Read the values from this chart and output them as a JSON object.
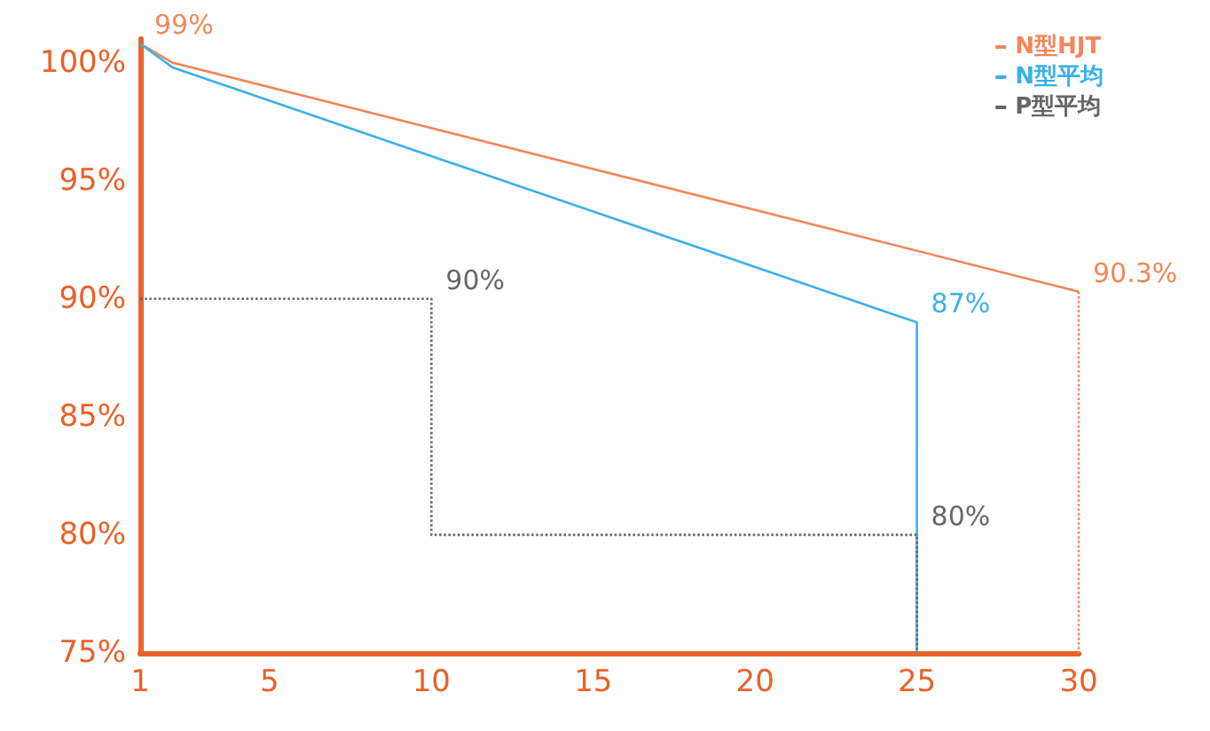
{
  "chart_data": {
    "type": "line",
    "xlim": [
      1,
      30
    ],
    "xticks": [
      1,
      5,
      10,
      15,
      20,
      25,
      30
    ],
    "ylim": [
      75,
      101
    ],
    "yticks": [
      {
        "value": 75,
        "label": "75%"
      },
      {
        "value": 80,
        "label": "80%"
      },
      {
        "value": 85,
        "label": "85%"
      },
      {
        "value": 90,
        "label": "90%"
      },
      {
        "value": 95,
        "label": "95%"
      },
      {
        "value": 100,
        "label": "100%"
      }
    ],
    "grid": false,
    "legend": "top right",
    "marker": "none",
    "series": [
      {
        "name": "N型HJT",
        "color": "#f0875a",
        "x": [
          1,
          2,
          30
        ],
        "values": [
          100.8,
          100,
          90.3
        ],
        "line_style": "solid"
      },
      {
        "color": "#f0875a",
        "x": [
          30,
          30
        ],
        "values": [
          90.3,
          75
        ],
        "line_style": "dotted"
      },
      {
        "name": "N型平均",
        "color": "#3ab0e8",
        "x": [
          1,
          2,
          25,
          25
        ],
        "values": [
          100.8,
          99.8,
          89,
          75
        ],
        "line_style": "solid"
      },
      {
        "name": "P型平均",
        "color": "#666666",
        "x": [
          1,
          10,
          10,
          25,
          25
        ],
        "values": [
          90,
          90,
          80,
          80,
          75
        ],
        "line_style": "dotted"
      }
    ],
    "annotations": [
      {
        "text": "99%",
        "x": 1,
        "y": 100.8
      },
      {
        "text": "90.3%",
        "x": 30,
        "y": 90.3
      },
      {
        "text": "87%",
        "x": 25,
        "y": 89
      },
      {
        "text": "90%",
        "x": 10,
        "y": 90
      },
      {
        "text": "80%",
        "x": 25,
        "y": 80
      }
    ]
  }
}
